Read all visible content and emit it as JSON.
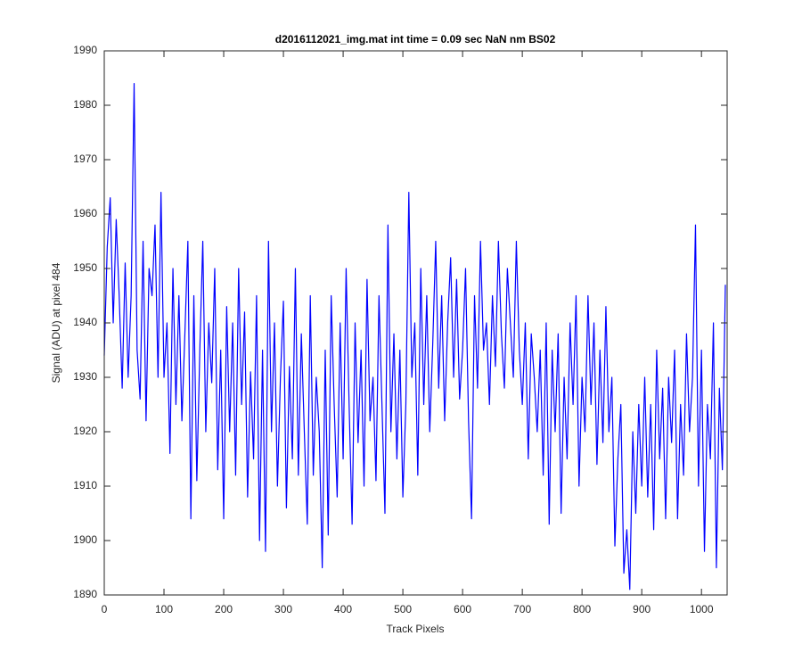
{
  "chart_data": {
    "type": "line",
    "title": "d2016112021_img.mat int time = 0.09 sec  NaN nm BS02",
    "x_label": "Track Pixels",
    "y_label": "Signal (ADU) at pixel 484",
    "xlim": [
      0,
      1043
    ],
    "ylim": [
      1890,
      1990
    ],
    "xticks": [
      0,
      100,
      200,
      300,
      400,
      500,
      600,
      700,
      800,
      900,
      1000
    ],
    "yticks": [
      1890,
      1900,
      1910,
      1920,
      1930,
      1940,
      1950,
      1960,
      1970,
      1980,
      1990
    ],
    "grid": false,
    "x": [
      0,
      5,
      10,
      15,
      20,
      25,
      30,
      35,
      40,
      45,
      50,
      55,
      60,
      65,
      70,
      75,
      80,
      85,
      90,
      95,
      100,
      105,
      110,
      115,
      120,
      125,
      130,
      135,
      140,
      145,
      150,
      155,
      160,
      165,
      170,
      175,
      180,
      185,
      190,
      195,
      200,
      205,
      210,
      215,
      220,
      225,
      230,
      235,
      240,
      245,
      250,
      255,
      260,
      265,
      270,
      275,
      280,
      285,
      290,
      295,
      300,
      305,
      310,
      315,
      320,
      325,
      330,
      335,
      340,
      345,
      350,
      355,
      360,
      365,
      370,
      375,
      380,
      385,
      390,
      395,
      400,
      405,
      410,
      415,
      420,
      425,
      430,
      435,
      440,
      445,
      450,
      455,
      460,
      465,
      470,
      475,
      480,
      485,
      490,
      495,
      500,
      505,
      510,
      515,
      520,
      525,
      530,
      535,
      540,
      545,
      550,
      555,
      560,
      565,
      570,
      575,
      580,
      585,
      590,
      595,
      600,
      605,
      610,
      615,
      620,
      625,
      630,
      635,
      640,
      645,
      650,
      655,
      660,
      665,
      670,
      675,
      680,
      685,
      690,
      695,
      700,
      705,
      710,
      715,
      720,
      725,
      730,
      735,
      740,
      745,
      750,
      755,
      760,
      765,
      770,
      775,
      780,
      785,
      790,
      795,
      800,
      805,
      810,
      815,
      820,
      825,
      830,
      835,
      840,
      845,
      850,
      855,
      860,
      865,
      870,
      875,
      880,
      885,
      890,
      895,
      900,
      905,
      910,
      915,
      920,
      925,
      930,
      935,
      940,
      945,
      950,
      955,
      960,
      965,
      970,
      975,
      980,
      985,
      990,
      995,
      1000,
      1005,
      1010,
      1015,
      1020,
      1025,
      1030,
      1035,
      1040
    ],
    "series": [
      {
        "color": "#0000ff",
        "values": [
          1934,
          1954,
          1963,
          1940,
          1959,
          1945,
          1928,
          1951,
          1930,
          1945,
          1984,
          1935,
          1926,
          1955,
          1922,
          1950,
          1945,
          1958,
          1930,
          1964,
          1930,
          1940,
          1916,
          1950,
          1925,
          1945,
          1922,
          1938,
          1955,
          1904,
          1945,
          1911,
          1935,
          1955,
          1920,
          1940,
          1929,
          1950,
          1913,
          1935,
          1904,
          1943,
          1920,
          1940,
          1912,
          1950,
          1925,
          1942,
          1908,
          1931,
          1915,
          1945,
          1900,
          1935,
          1898,
          1955,
          1920,
          1940,
          1910,
          1930,
          1944,
          1906,
          1932,
          1915,
          1950,
          1912,
          1938,
          1920,
          1903,
          1945,
          1912,
          1930,
          1920,
          1895,
          1935,
          1901,
          1945,
          1925,
          1908,
          1940,
          1915,
          1950,
          1925,
          1903,
          1940,
          1918,
          1935,
          1910,
          1948,
          1922,
          1930,
          1911,
          1945,
          1925,
          1905,
          1958,
          1920,
          1938,
          1915,
          1935,
          1908,
          1925,
          1964,
          1930,
          1940,
          1912,
          1950,
          1925,
          1945,
          1920,
          1936,
          1955,
          1928,
          1945,
          1922,
          1940,
          1952,
          1930,
          1948,
          1926,
          1935,
          1950,
          1922,
          1904,
          1945,
          1928,
          1955,
          1935,
          1940,
          1925,
          1945,
          1932,
          1955,
          1938,
          1928,
          1950,
          1940,
          1930,
          1955,
          1935,
          1925,
          1940,
          1915,
          1938,
          1930,
          1920,
          1935,
          1912,
          1940,
          1903,
          1935,
          1920,
          1938,
          1905,
          1930,
          1915,
          1940,
          1925,
          1945,
          1910,
          1930,
          1920,
          1945,
          1925,
          1940,
          1914,
          1935,
          1918,
          1943,
          1920,
          1930,
          1899,
          1915,
          1925,
          1894,
          1902,
          1891,
          1920,
          1905,
          1925,
          1910,
          1930,
          1908,
          1925,
          1902,
          1935,
          1915,
          1928,
          1904,
          1930,
          1918,
          1935,
          1904,
          1925,
          1912,
          1938,
          1920,
          1930,
          1958,
          1910,
          1935,
          1898,
          1925,
          1915,
          1940,
          1895,
          1928,
          1913,
          1947
        ]
      }
    ]
  }
}
